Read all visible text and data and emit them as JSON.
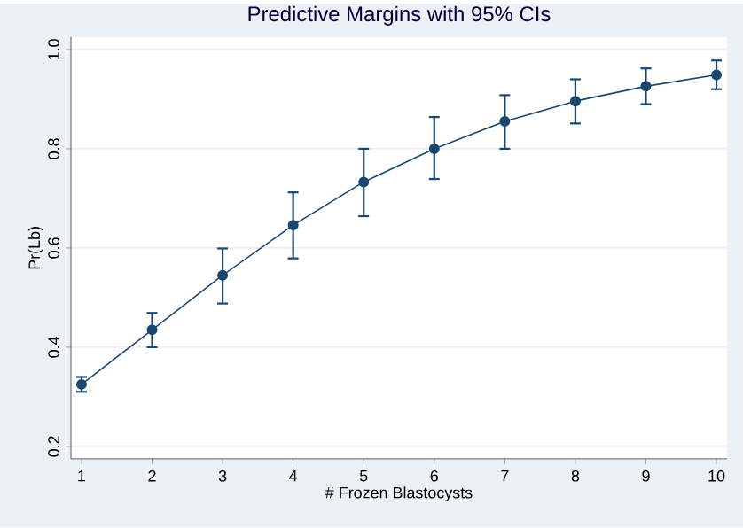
{
  "chart_data": {
    "type": "line",
    "title": "Predictive Margins with 95% CIs",
    "xlabel": "# Frozen Blastocysts",
    "ylabel": "Pr(Lb)",
    "x": [
      1,
      2,
      3,
      4,
      5,
      6,
      7,
      8,
      9,
      10
    ],
    "series": [
      {
        "color": "#1a476f",
        "values": [
          0.325,
          0.435,
          0.545,
          0.646,
          0.733,
          0.8,
          0.855,
          0.896,
          0.926,
          0.949
        ],
        "errors": [
          [
            0.31,
            0.34
          ],
          [
            0.4,
            0.469
          ],
          [
            0.488,
            0.599
          ],
          [
            0.579,
            0.712
          ],
          [
            0.664,
            0.8
          ],
          [
            0.739,
            0.864
          ],
          [
            0.8,
            0.908
          ],
          [
            0.851,
            0.94
          ],
          [
            0.89,
            0.962
          ],
          [
            0.92,
            0.978
          ]
        ]
      }
    ],
    "xlim": [
      0.85,
      10.15
    ],
    "ylim": [
      0.175,
      1.025
    ],
    "xticks": [
      1,
      2,
      3,
      4,
      5,
      6,
      7,
      8,
      9,
      10
    ],
    "yticks": [
      0.2,
      0.4,
      0.6,
      0.8,
      {
        "value": 1,
        "label": "1.0"
      }
    ],
    "grid": "y",
    "marker": "circle",
    "line_style": "solid"
  }
}
